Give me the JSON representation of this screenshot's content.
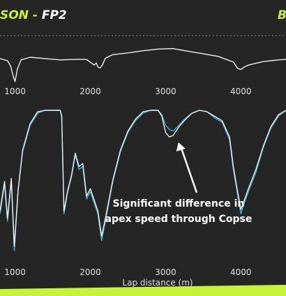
{
  "header": {
    "title_name": "SON",
    "title_sep": " - ",
    "title_session": "FP2",
    "right_fragment": "B"
  },
  "colors": {
    "background": "#252525",
    "name_accent": "#c7f23a",
    "series_white": "#eeeeee",
    "series_cyan": "#3bb2d6",
    "footer_band": "#c7f23a"
  },
  "chart_data": [
    {
      "type": "line",
      "panel": "delta",
      "xlim": [
        800,
        4600
      ],
      "x_ticks": [
        1000,
        2000,
        3000,
        4000
      ],
      "x_tick_labels": [
        "1000",
        "2000",
        "3000",
        "4000"
      ],
      "reference_line": "dashed",
      "series": [
        {
          "color": "#eeeeee",
          "x": [
            800,
            900,
            940,
            980,
            1000,
            1030,
            1080,
            1200,
            1400,
            1600,
            1800,
            1950,
            2050,
            2080,
            2100,
            2130,
            2160,
            2200,
            2300,
            2500,
            2700,
            2900,
            3100,
            3300,
            3500,
            3700,
            3900,
            3960,
            4000,
            4050,
            4100,
            4200,
            4300,
            4400,
            4500,
            4600
          ],
          "y": [
            0.55,
            0.5,
            0.38,
            0.12,
            0.02,
            0.3,
            0.52,
            0.58,
            0.55,
            0.52,
            0.53,
            0.53,
            0.4,
            0.45,
            0.36,
            0.33,
            0.4,
            0.56,
            0.64,
            0.68,
            0.73,
            0.77,
            0.78,
            0.72,
            0.66,
            0.6,
            0.47,
            0.32,
            0.3,
            0.36,
            0.4,
            0.44,
            0.48,
            0.5,
            0.52,
            0.53
          ]
        }
      ]
    },
    {
      "type": "line",
      "panel": "speed",
      "xlabel": "Lap distance (m)",
      "xlim": [
        800,
        4600
      ],
      "x_ticks": [
        1000,
        2000,
        3000,
        4000
      ],
      "x_tick_labels": [
        "1000",
        "2000",
        "3000",
        "4000"
      ],
      "series": [
        {
          "color": "#3bb2d6",
          "x": [
            800,
            860,
            900,
            950,
            990,
            1040,
            1100,
            1200,
            1300,
            1400,
            1500,
            1600,
            1620,
            1650,
            1700,
            1750,
            1800,
            1850,
            1900,
            1950,
            2000,
            2100,
            2150,
            2200,
            2300,
            2400,
            2500,
            2600,
            2700,
            2800,
            2900,
            2950,
            3000,
            3050,
            3100,
            3180,
            3250,
            3350,
            3450,
            3550,
            3650,
            3750,
            3850,
            3900,
            3950,
            4000,
            4050,
            4100,
            4200,
            4300,
            4400,
            4500,
            4600
          ],
          "y": [
            0.3,
            0.5,
            0.25,
            0.52,
            0.05,
            0.45,
            0.72,
            0.9,
            0.98,
            1.0,
            1.0,
            1.0,
            0.95,
            0.3,
            0.45,
            0.55,
            0.7,
            0.6,
            0.62,
            0.4,
            0.45,
            0.3,
            0.12,
            0.25,
            0.52,
            0.72,
            0.85,
            0.93,
            0.98,
            1.0,
            1.0,
            0.97,
            0.9,
            0.87,
            0.86,
            0.9,
            0.94,
            0.98,
            1.0,
            0.99,
            0.95,
            0.92,
            0.8,
            0.6,
            0.45,
            0.3,
            0.38,
            0.45,
            0.58,
            0.75,
            0.88,
            0.96,
            1.0
          ]
        },
        {
          "color": "#eeeeee",
          "x": [
            800,
            860,
            900,
            950,
            990,
            1040,
            1100,
            1200,
            1300,
            1400,
            1500,
            1600,
            1620,
            1650,
            1700,
            1750,
            1800,
            1850,
            1900,
            1950,
            2000,
            2100,
            2150,
            2200,
            2300,
            2400,
            2500,
            2600,
            2700,
            2800,
            2900,
            2950,
            3000,
            3050,
            3100,
            3180,
            3250,
            3350,
            3450,
            3550,
            3650,
            3750,
            3850,
            3900,
            3950,
            4000,
            4050,
            4100,
            4200,
            4300,
            4400,
            4500,
            4600
          ],
          "y": [
            0.32,
            0.52,
            0.27,
            0.54,
            0.08,
            0.46,
            0.73,
            0.91,
            0.99,
            1.0,
            1.0,
            1.0,
            0.96,
            0.32,
            0.46,
            0.56,
            0.71,
            0.62,
            0.64,
            0.42,
            0.47,
            0.32,
            0.15,
            0.27,
            0.53,
            0.73,
            0.86,
            0.94,
            0.99,
            1.0,
            1.0,
            0.96,
            0.85,
            0.82,
            0.83,
            0.89,
            0.93,
            0.98,
            1.0,
            0.99,
            0.96,
            0.93,
            0.82,
            0.62,
            0.47,
            0.33,
            0.4,
            0.47,
            0.6,
            0.76,
            0.89,
            0.97,
            1.0
          ]
        }
      ],
      "annotation": {
        "lines": [
          "Significant difference in",
          "apex speed through Copse"
        ],
        "x": 3200,
        "arrow_to": [
          3180,
          0.84
        ]
      }
    }
  ]
}
